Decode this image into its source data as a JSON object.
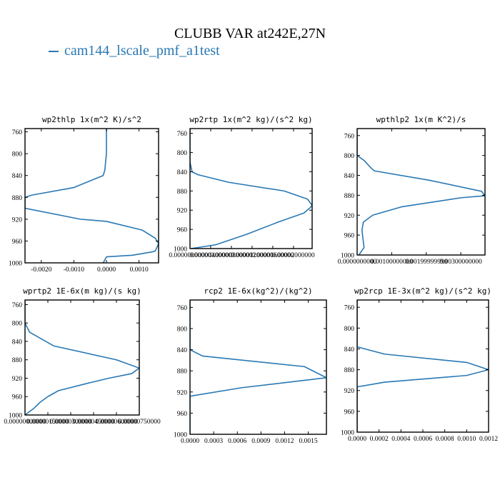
{
  "page": {
    "title": "CLUBB VAR at242E,27N"
  },
  "legend": {
    "label": "cam144_lscale_pmf_a1test",
    "color": "#2878b4"
  },
  "chart_data": [
    {
      "type": "line",
      "title": "wp2thlp  1x(m^2 K)/s^2",
      "y": [
        754,
        757,
        760,
        800,
        830,
        840,
        862,
        876,
        880,
        885,
        900,
        920,
        924,
        940,
        955,
        965,
        978,
        980,
        986,
        989,
        1000
      ],
      "x": [
        0.0,
        0.0,
        0.0,
        0.0,
        -5e-05,
        -0.0001,
        -0.001,
        -0.0023,
        -0.0025,
        -0.0025,
        -0.0025,
        -0.0008,
        0.0,
        0.0011,
        0.0015,
        0.0016,
        0.0015,
        0.0014,
        0.0008,
        0.0,
        -0.0001
      ],
      "xlim": [
        -0.0025,
        0.0016
      ],
      "ylim": [
        1000,
        754
      ],
      "xticks": [
        -0.002,
        -0.001,
        0.0,
        0.001
      ],
      "xtick_labels": [
        "-0.0020",
        "-0.0010",
        "0.0000",
        "0.0010"
      ],
      "yticks": [
        760,
        800,
        840,
        880,
        920,
        960,
        1000
      ],
      "series_color": "#2878b4"
    },
    {
      "type": "line",
      "title": "wp2rtp  1x(m^2 kg)/(s^2 kg)",
      "y": [
        750,
        760,
        800,
        820,
        840,
        846,
        862,
        880,
        897,
        910,
        915,
        926,
        945,
        970,
        992,
        1000
      ],
      "x": [
        0.0,
        0.0,
        0.0,
        0.0,
        4e-07,
        1.5e-06,
        7.5e-06,
        1.82e-05,
        2.27e-05,
        2.36e-05,
        2.32e-05,
        2.2e-05,
        1.7e-05,
        1.1e-05,
        5e-06,
        2e-07
      ],
      "xlim": [
        0.0,
        2.36e-05
      ],
      "ylim": [
        1000,
        750
      ],
      "xticks": [
        0.0,
        4e-06,
        8e-06,
        1.2e-05,
        1.6e-05,
        2e-05
      ],
      "xtick_labels": [
        "0.00000000000",
        "0.00000400000",
        "0.00000800000",
        "0.00001200000",
        "0.00001600000",
        "0.00002000000"
      ],
      "yticks": [
        760,
        800,
        840,
        880,
        920,
        960,
        1000
      ],
      "series_color": "#2878b4"
    },
    {
      "type": "line",
      "title": "wpthlp2  1x(m K^2)/s",
      "y": [
        746,
        760,
        800,
        810,
        825,
        831,
        850,
        872,
        881,
        885,
        903,
        920,
        934,
        950,
        968,
        985,
        1000
      ],
      "x": [
        0.0,
        0.0,
        0.0,
        0.0002,
        0.0004,
        0.0005,
        0.0021,
        0.0036,
        0.0037,
        0.003,
        0.0013,
        0.00045,
        0.00018,
        0.00014,
        0.00017,
        0.0002,
        5e-05
      ],
      "xlim": [
        0.0,
        0.0037
      ],
      "ylim": [
        1000,
        746
      ],
      "xticks": [
        0.0,
        0.001,
        0.002,
        0.003
      ],
      "xtick_labels": [
        "0.0000000000",
        "0.00100000000",
        "0.00199999990",
        "0.00300000000"
      ],
      "yticks": [
        760,
        800,
        840,
        880,
        920,
        960,
        1000
      ],
      "series_color": "#2878b4"
    },
    {
      "type": "line",
      "title": "wprtp2  1E-6x(m kg)/(s kg)",
      "y": [
        750,
        760,
        800,
        820,
        850,
        880,
        898,
        910,
        920,
        932,
        947,
        960,
        972,
        985,
        995,
        1000
      ],
      "x": [
        0.0,
        0.0,
        0.0,
        3e-07,
        1.9e-06,
        6e-06,
        7.5e-06,
        7e-06,
        5.5e-06,
        4e-06,
        2.2e-06,
        1.5e-06,
        1e-06,
        6e-07,
        2e-07,
        0.0
      ],
      "xlim": [
        0.0,
        7.5e-06
      ],
      "ylim": [
        1000,
        750
      ],
      "xticks": [
        0.0,
        1.5e-06,
        3e-06,
        4.5e-06,
        6e-06,
        7.5e-06
      ],
      "xtick_labels": [
        "0.00000000000",
        "0.00000150000",
        "0.00000300000",
        "0.00000450000",
        "0.00000600000",
        "0.00000750000"
      ],
      "yticks": [
        760,
        800,
        840,
        880,
        920,
        960,
        1000
      ],
      "series_color": "#2878b4"
    },
    {
      "type": "line",
      "title": "rcp2  1E-6x(kg^2)/(kg^2)",
      "y": [
        746,
        760,
        800,
        840,
        852,
        872,
        893,
        912,
        928,
        935,
        1000
      ],
      "x": [
        0.0,
        0.0,
        0.0,
        0.0,
        0.00016,
        0.00145,
        0.00173,
        0.00065,
        0.0,
        0.0,
        0.0
      ],
      "xlim": [
        0.0,
        0.00173
      ],
      "ylim": [
        1000,
        746
      ],
      "xticks": [
        0.0,
        0.0003,
        0.0006,
        0.0009,
        0.0012,
        0.0015
      ],
      "xtick_labels": [
        "0.0000",
        "0.0003",
        "0.0006",
        "0.0009",
        "0.0012",
        "0.0015"
      ],
      "yticks": [
        760,
        800,
        840,
        880,
        920,
        960,
        1000
      ],
      "series_color": "#2878b4"
    },
    {
      "type": "line",
      "title": "wp2rcp  1E-3x(m^2 kg)/(s^2 kg)",
      "y": [
        746,
        760,
        800,
        836,
        850,
        866,
        880,
        891,
        904,
        913,
        930,
        1000
      ],
      "x": [
        0.0,
        0.0,
        0.0,
        0.0,
        0.00025,
        0.001,
        0.0012,
        0.001,
        0.00025,
        0.0,
        0.0,
        0.0
      ],
      "xlim": [
        0.0,
        0.0012
      ],
      "ylim": [
        1000,
        746
      ],
      "xticks": [
        0.0,
        0.0002,
        0.0004,
        0.0006,
        0.0008,
        0.001,
        0.0012
      ],
      "xtick_labels": [
        "0.0000",
        "0.0002",
        "0.0004",
        "0.0006",
        "0.0008",
        "0.0010",
        "0.0012"
      ],
      "yticks": [
        760,
        800,
        840,
        880,
        920,
        960,
        1000
      ],
      "series_color": "#2878b4"
    }
  ]
}
